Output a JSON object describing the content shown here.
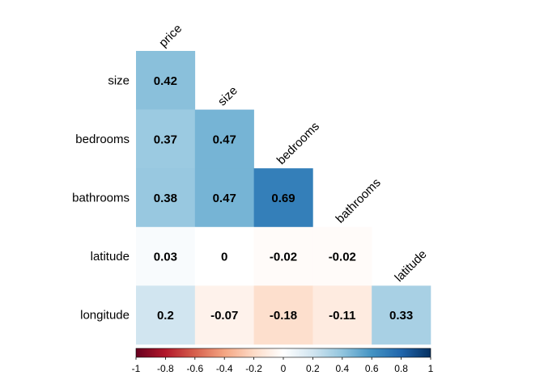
{
  "chart_data": {
    "type": "heatmap",
    "subtype": "correlation-lower-triangle",
    "variables": [
      "price",
      "size",
      "bedrooms",
      "bathrooms",
      "latitude",
      "longitude"
    ],
    "row_labels": [
      "size",
      "bedrooms",
      "bathrooms",
      "latitude",
      "longitude"
    ],
    "col_labels": [
      "price",
      "size",
      "bedrooms",
      "bathrooms",
      "latitude"
    ],
    "cells": [
      [
        0.42
      ],
      [
        0.37,
        0.47
      ],
      [
        0.38,
        0.47,
        0.69
      ],
      [
        0.03,
        0,
        -0.02,
        -0.02
      ],
      [
        0.2,
        -0.07,
        -0.18,
        -0.11,
        0.33
      ]
    ],
    "cell_labels": [
      [
        "0.42"
      ],
      [
        "0.37",
        "0.47"
      ],
      [
        "0.38",
        "0.47",
        "0.69"
      ],
      [
        "0.03",
        "0",
        "-0.02",
        "-0.02"
      ],
      [
        "0.2",
        "-0.07",
        "-0.18",
        "-0.11",
        "0.33"
      ]
    ],
    "colorbar": {
      "range": [
        -1,
        1
      ],
      "ticks": [
        "-1",
        "-0.8",
        "-0.6",
        "-0.4",
        "-0.2",
        "0",
        "0.2",
        "0.4",
        "0.6",
        "0.8",
        "1"
      ],
      "colors": [
        "#67001F",
        "#B2182B",
        "#D6604D",
        "#F4A582",
        "#FDDBC7",
        "#FFFFFF",
        "#D1E5F0",
        "#92C5DE",
        "#4393C3",
        "#2166AC",
        "#053061"
      ],
      "placement": "bottom"
    }
  }
}
